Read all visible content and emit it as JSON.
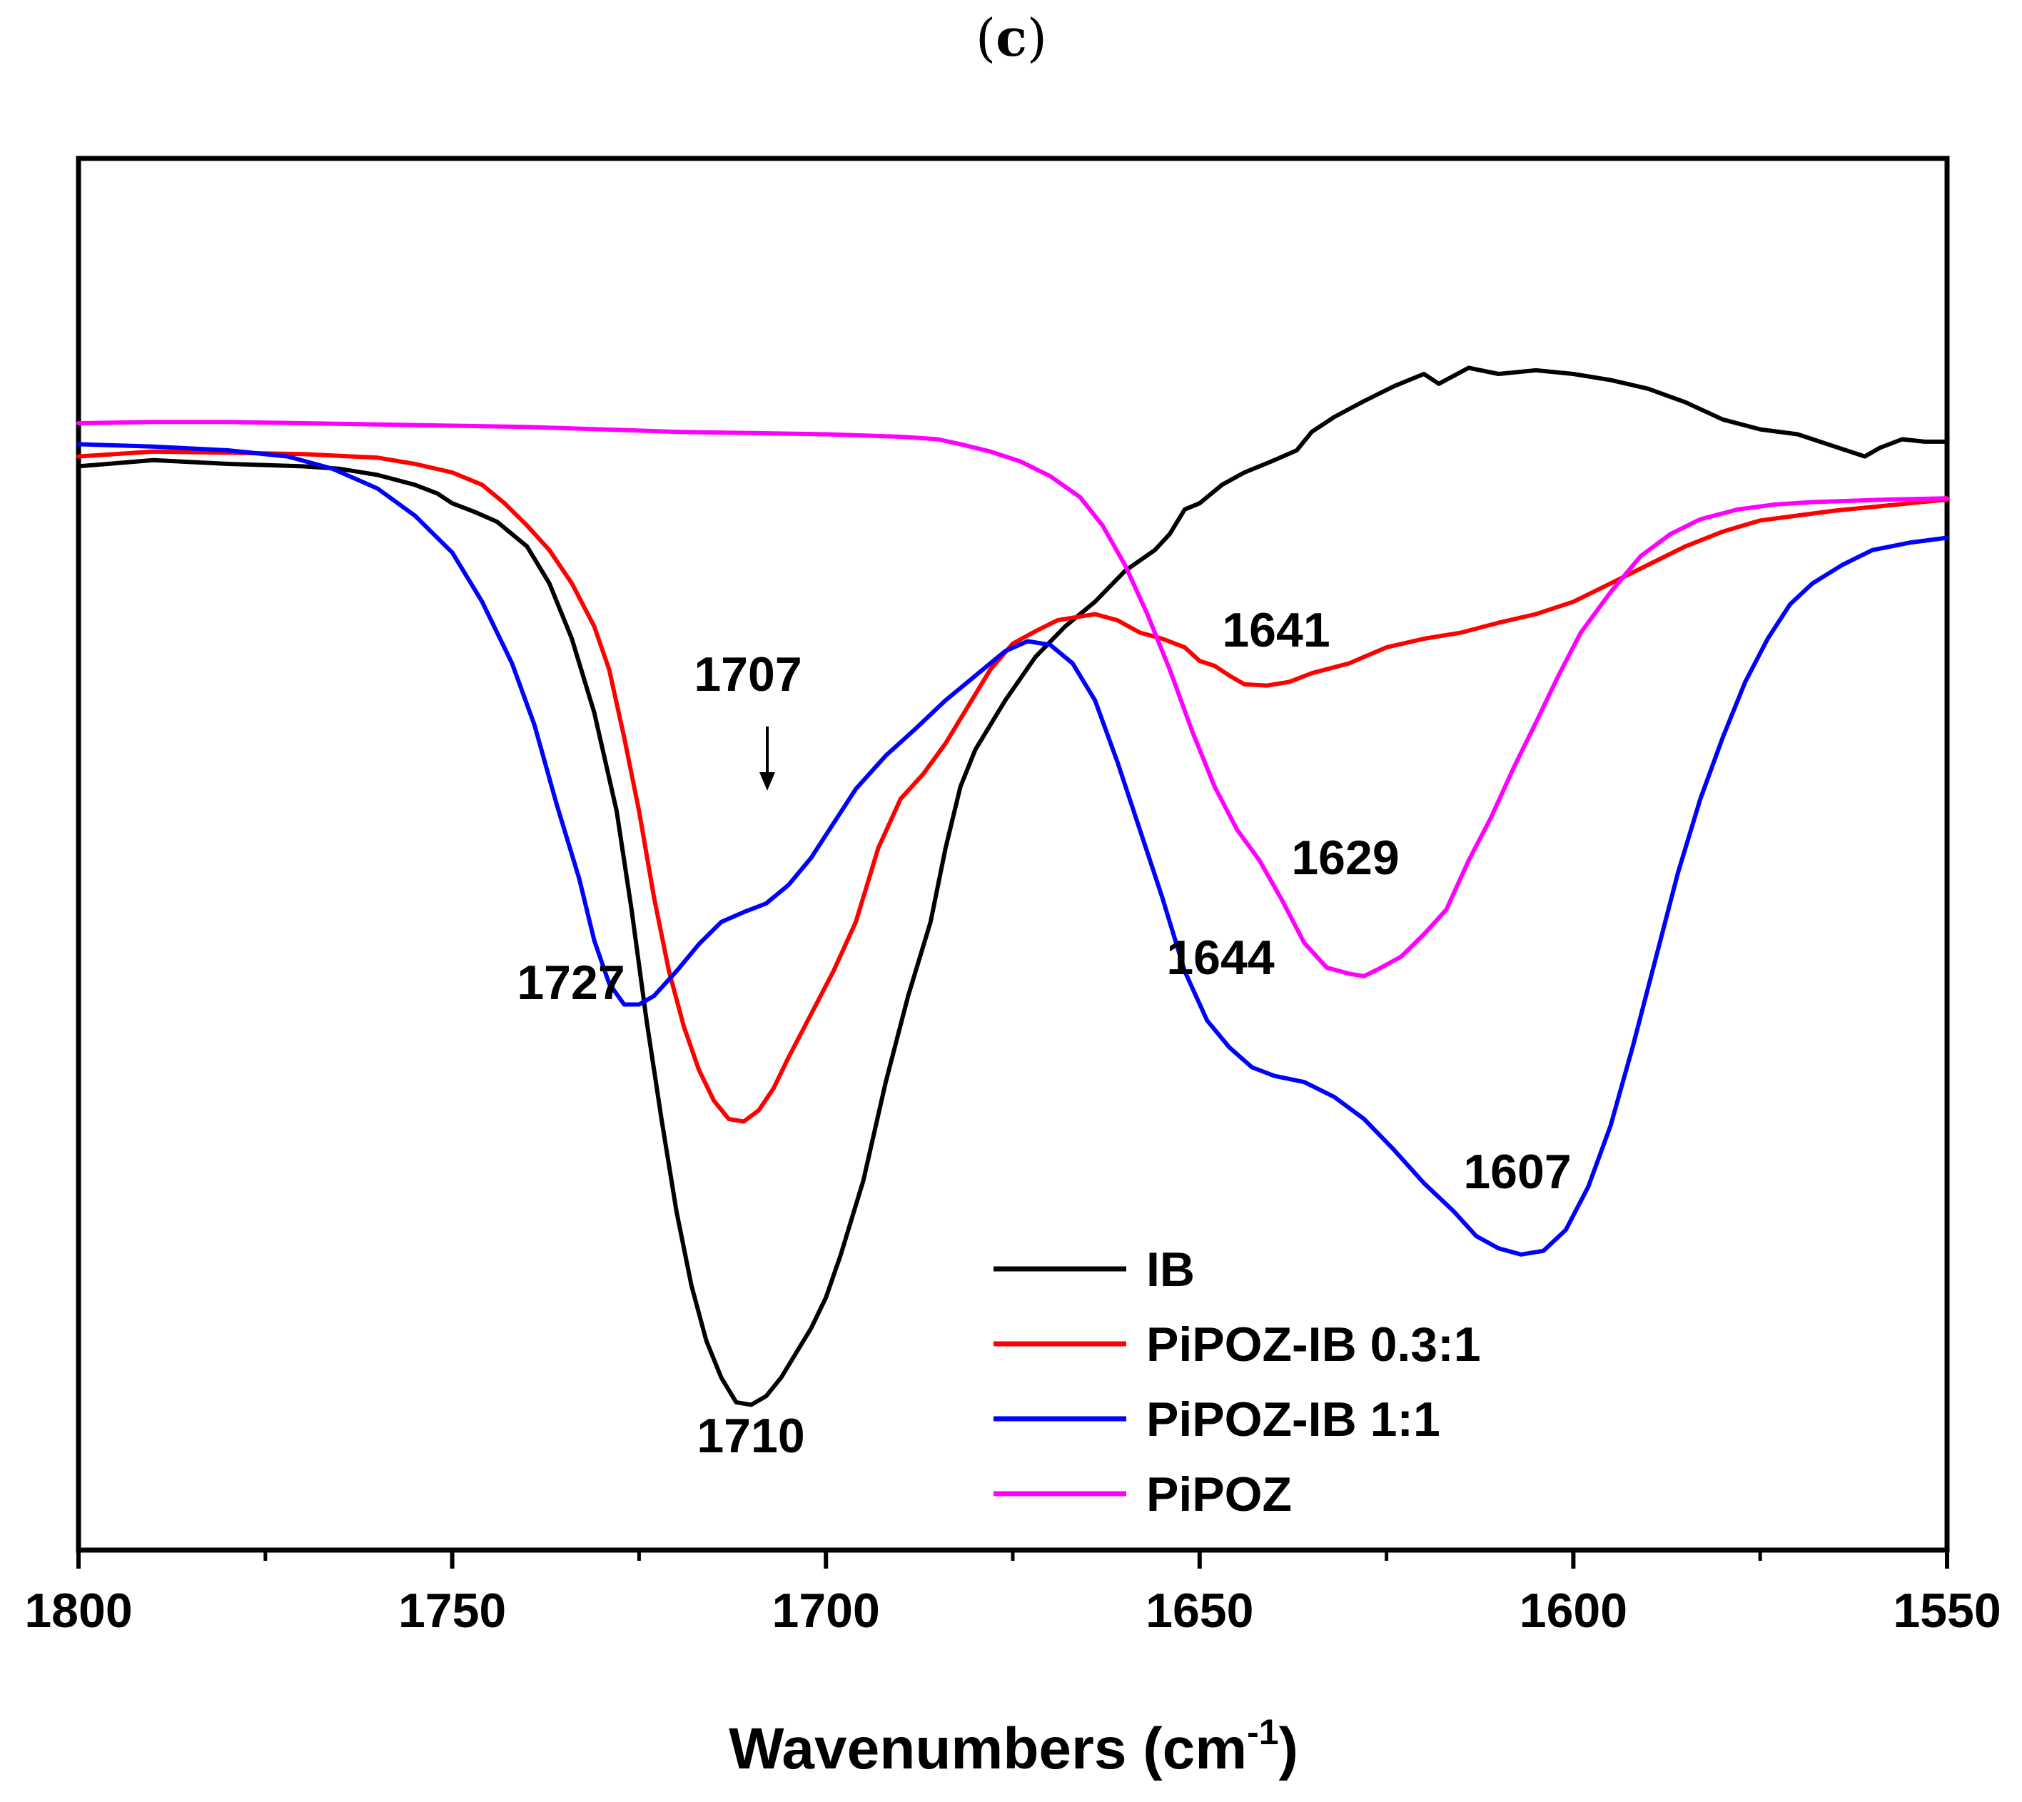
{
  "panel": {
    "open": "(",
    "letter": "c",
    "close": ")"
  },
  "chart_data": {
    "type": "line",
    "title": "",
    "xlabel": "Wavenumbers (cm",
    "xlabel_sup": "-1",
    "xlabel_close": ")",
    "ylabel": "",
    "xlim": [
      1800,
      1550
    ],
    "x_reversed": true,
    "ylim": [
      -0.05,
      1.08
    ],
    "y_ticks_shown": false,
    "x_ticks": [
      1800,
      1750,
      1700,
      1650,
      1600,
      1550
    ],
    "x_tick_labels": [
      "1800",
      "1750",
      "1700",
      "1650",
      "1600",
      "1550"
    ],
    "x_minor_ticks": [
      1775,
      1725,
      1675,
      1625,
      1575
    ],
    "legend_position": "bottom-right",
    "series": [
      {
        "name": "IB",
        "color": "#000000",
        "points": [
          [
            1800,
            0.83
          ],
          [
            1790,
            0.835
          ],
          [
            1780,
            0.832
          ],
          [
            1770,
            0.83
          ],
          [
            1765,
            0.828
          ],
          [
            1760,
            0.823
          ],
          [
            1755,
            0.815
          ],
          [
            1752,
            0.808
          ],
          [
            1750,
            0.8
          ],
          [
            1747,
            0.793
          ],
          [
            1744,
            0.785
          ],
          [
            1740,
            0.765
          ],
          [
            1737,
            0.735
          ],
          [
            1734,
            0.69
          ],
          [
            1731,
            0.63
          ],
          [
            1728,
            0.55
          ],
          [
            1726,
            0.47
          ],
          [
            1724,
            0.38
          ],
          [
            1722,
            0.3
          ],
          [
            1720,
            0.225
          ],
          [
            1718,
            0.165
          ],
          [
            1716,
            0.12
          ],
          [
            1714,
            0.09
          ],
          [
            1712,
            0.07
          ],
          [
            1710,
            0.068
          ],
          [
            1708,
            0.075
          ],
          [
            1706,
            0.09
          ],
          [
            1704,
            0.11
          ],
          [
            1702,
            0.13
          ],
          [
            1700,
            0.155
          ],
          [
            1698,
            0.19
          ],
          [
            1695,
            0.25
          ],
          [
            1692,
            0.33
          ],
          [
            1689,
            0.4
          ],
          [
            1686,
            0.46
          ],
          [
            1684,
            0.52
          ],
          [
            1682,
            0.57
          ],
          [
            1680,
            0.6
          ],
          [
            1676,
            0.64
          ],
          [
            1672,
            0.675
          ],
          [
            1668,
            0.7
          ],
          [
            1664,
            0.72
          ],
          [
            1660,
            0.745
          ],
          [
            1656,
            0.762
          ],
          [
            1654,
            0.775
          ],
          [
            1652,
            0.795
          ],
          [
            1650,
            0.8
          ],
          [
            1647,
            0.815
          ],
          [
            1644,
            0.825
          ],
          [
            1640,
            0.835
          ],
          [
            1637,
            0.843
          ],
          [
            1635,
            0.858
          ],
          [
            1632,
            0.87
          ],
          [
            1628,
            0.883
          ],
          [
            1624,
            0.895
          ],
          [
            1620,
            0.905
          ],
          [
            1618,
            0.897
          ],
          [
            1614,
            0.91
          ],
          [
            1610,
            0.905
          ],
          [
            1605,
            0.908
          ],
          [
            1600,
            0.905
          ],
          [
            1595,
            0.9
          ],
          [
            1590,
            0.893
          ],
          [
            1585,
            0.882
          ],
          [
            1580,
            0.868
          ],
          [
            1575,
            0.86
          ],
          [
            1570,
            0.856
          ],
          [
            1565,
            0.846
          ],
          [
            1561,
            0.838
          ],
          [
            1559,
            0.845
          ],
          [
            1556,
            0.852
          ],
          [
            1553,
            0.85
          ],
          [
            1550,
            0.85
          ]
        ]
      },
      {
        "name": "PiPOZ-IB 0.3:1",
        "color": "#ff0000",
        "points": [
          [
            1800,
            0.838
          ],
          [
            1790,
            0.842
          ],
          [
            1780,
            0.841
          ],
          [
            1770,
            0.84
          ],
          [
            1760,
            0.837
          ],
          [
            1755,
            0.832
          ],
          [
            1750,
            0.825
          ],
          [
            1746,
            0.815
          ],
          [
            1743,
            0.8
          ],
          [
            1740,
            0.782
          ],
          [
            1737,
            0.762
          ],
          [
            1734,
            0.735
          ],
          [
            1731,
            0.7
          ],
          [
            1729,
            0.665
          ],
          [
            1727,
            0.61
          ],
          [
            1725,
            0.55
          ],
          [
            1723,
            0.48
          ],
          [
            1721,
            0.42
          ],
          [
            1719,
            0.375
          ],
          [
            1717,
            0.34
          ],
          [
            1715,
            0.315
          ],
          [
            1713,
            0.3
          ],
          [
            1711,
            0.298
          ],
          [
            1709,
            0.307
          ],
          [
            1707,
            0.325
          ],
          [
            1705,
            0.35
          ],
          [
            1702,
            0.385
          ],
          [
            1699,
            0.42
          ],
          [
            1696,
            0.46
          ],
          [
            1693,
            0.52
          ],
          [
            1690,
            0.56
          ],
          [
            1687,
            0.58
          ],
          [
            1684,
            0.605
          ],
          [
            1681,
            0.635
          ],
          [
            1678,
            0.665
          ],
          [
            1675,
            0.686
          ],
          [
            1672,
            0.696
          ],
          [
            1669,
            0.705
          ],
          [
            1666,
            0.708
          ],
          [
            1664,
            0.71
          ],
          [
            1661,
            0.705
          ],
          [
            1658,
            0.695
          ],
          [
            1655,
            0.69
          ],
          [
            1652,
            0.683
          ],
          [
            1650,
            0.672
          ],
          [
            1648,
            0.668
          ],
          [
            1646,
            0.66
          ],
          [
            1644,
            0.653
          ],
          [
            1641,
            0.652
          ],
          [
            1638,
            0.655
          ],
          [
            1635,
            0.662
          ],
          [
            1630,
            0.67
          ],
          [
            1625,
            0.683
          ],
          [
            1620,
            0.69
          ],
          [
            1615,
            0.695
          ],
          [
            1610,
            0.703
          ],
          [
            1605,
            0.71
          ],
          [
            1600,
            0.72
          ],
          [
            1595,
            0.735
          ],
          [
            1590,
            0.75
          ],
          [
            1585,
            0.765
          ],
          [
            1580,
            0.777
          ],
          [
            1575,
            0.786
          ],
          [
            1570,
            0.79
          ],
          [
            1565,
            0.794
          ],
          [
            1560,
            0.797
          ],
          [
            1555,
            0.8
          ],
          [
            1550,
            0.803
          ]
        ]
      },
      {
        "name": "PiPOZ-IB 1:1",
        "color": "#0000ff",
        "points": [
          [
            1800,
            0.848
          ],
          [
            1790,
            0.846
          ],
          [
            1780,
            0.843
          ],
          [
            1772,
            0.838
          ],
          [
            1766,
            0.828
          ],
          [
            1760,
            0.812
          ],
          [
            1755,
            0.79
          ],
          [
            1750,
            0.76
          ],
          [
            1746,
            0.72
          ],
          [
            1742,
            0.67
          ],
          [
            1739,
            0.62
          ],
          [
            1736,
            0.555
          ],
          [
            1733,
            0.495
          ],
          [
            1731,
            0.445
          ],
          [
            1729,
            0.41
          ],
          [
            1727,
            0.393
          ],
          [
            1725,
            0.393
          ],
          [
            1723,
            0.4
          ],
          [
            1720,
            0.42
          ],
          [
            1717,
            0.442
          ],
          [
            1714,
            0.46
          ],
          [
            1711,
            0.468
          ],
          [
            1708,
            0.475
          ],
          [
            1705,
            0.49
          ],
          [
            1702,
            0.512
          ],
          [
            1699,
            0.54
          ],
          [
            1696,
            0.568
          ],
          [
            1692,
            0.595
          ],
          [
            1688,
            0.617
          ],
          [
            1684,
            0.64
          ],
          [
            1680,
            0.66
          ],
          [
            1676,
            0.68
          ],
          [
            1673,
            0.688
          ],
          [
            1670,
            0.685
          ],
          [
            1667,
            0.67
          ],
          [
            1664,
            0.64
          ],
          [
            1661,
            0.59
          ],
          [
            1658,
            0.535
          ],
          [
            1655,
            0.48
          ],
          [
            1652,
            0.42
          ],
          [
            1649,
            0.38
          ],
          [
            1646,
            0.358
          ],
          [
            1643,
            0.342
          ],
          [
            1640,
            0.335
          ],
          [
            1636,
            0.33
          ],
          [
            1632,
            0.318
          ],
          [
            1628,
            0.3
          ],
          [
            1624,
            0.275
          ],
          [
            1620,
            0.248
          ],
          [
            1616,
            0.225
          ],
          [
            1613,
            0.205
          ],
          [
            1610,
            0.195
          ],
          [
            1607,
            0.19
          ],
          [
            1604,
            0.193
          ],
          [
            1601,
            0.21
          ],
          [
            1598,
            0.245
          ],
          [
            1595,
            0.295
          ],
          [
            1592,
            0.36
          ],
          [
            1589,
            0.43
          ],
          [
            1586,
            0.5
          ],
          [
            1583,
            0.56
          ],
          [
            1580,
            0.61
          ],
          [
            1577,
            0.655
          ],
          [
            1574,
            0.69
          ],
          [
            1571,
            0.718
          ],
          [
            1568,
            0.735
          ],
          [
            1564,
            0.75
          ],
          [
            1560,
            0.762
          ],
          [
            1555,
            0.768
          ],
          [
            1550,
            0.772
          ]
        ]
      },
      {
        "name": "PiPOZ",
        "color": "#ff00ff",
        "points": [
          [
            1800,
            0.865
          ],
          [
            1790,
            0.866
          ],
          [
            1780,
            0.866
          ],
          [
            1770,
            0.865
          ],
          [
            1760,
            0.864
          ],
          [
            1750,
            0.863
          ],
          [
            1740,
            0.862
          ],
          [
            1730,
            0.86
          ],
          [
            1720,
            0.858
          ],
          [
            1710,
            0.857
          ],
          [
            1700,
            0.856
          ],
          [
            1690,
            0.854
          ],
          [
            1685,
            0.852
          ],
          [
            1682,
            0.848
          ],
          [
            1678,
            0.842
          ],
          [
            1674,
            0.834
          ],
          [
            1670,
            0.822
          ],
          [
            1666,
            0.805
          ],
          [
            1663,
            0.782
          ],
          [
            1660,
            0.75
          ],
          [
            1657,
            0.71
          ],
          [
            1654,
            0.665
          ],
          [
            1651,
            0.615
          ],
          [
            1648,
            0.57
          ],
          [
            1645,
            0.535
          ],
          [
            1642,
            0.51
          ],
          [
            1639,
            0.478
          ],
          [
            1636,
            0.443
          ],
          [
            1633,
            0.423
          ],
          [
            1630,
            0.418
          ],
          [
            1628,
            0.416
          ],
          [
            1626,
            0.422
          ],
          [
            1623,
            0.432
          ],
          [
            1620,
            0.45
          ],
          [
            1617,
            0.47
          ],
          [
            1614,
            0.51
          ],
          [
            1611,
            0.545
          ],
          [
            1608,
            0.585
          ],
          [
            1605,
            0.622
          ],
          [
            1602,
            0.66
          ],
          [
            1599,
            0.695
          ],
          [
            1595,
            0.728
          ],
          [
            1591,
            0.757
          ],
          [
            1587,
            0.775
          ],
          [
            1583,
            0.787
          ],
          [
            1578,
            0.795
          ],
          [
            1573,
            0.799
          ],
          [
            1568,
            0.801
          ],
          [
            1563,
            0.802
          ],
          [
            1558,
            0.803
          ],
          [
            1550,
            0.804
          ]
        ]
      }
    ],
    "annotations": [
      {
        "text": "1707",
        "x": 1708,
        "arrow": true
      },
      {
        "text": "1727",
        "x": 1727
      },
      {
        "text": "1710",
        "x": 1710
      },
      {
        "text": "1641",
        "x": 1641
      },
      {
        "text": "1629",
        "x": 1629
      },
      {
        "text": "1644",
        "x": 1644
      },
      {
        "text": "1607",
        "x": 1607
      }
    ]
  }
}
